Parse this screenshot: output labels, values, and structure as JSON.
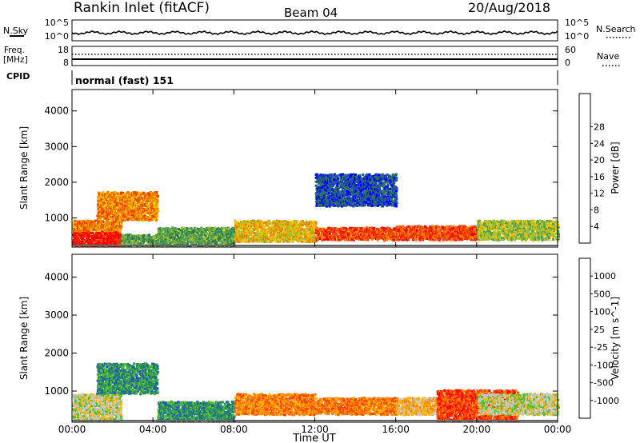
{
  "header": {
    "title": "Rankin Inlet (fitACF)",
    "beam": "Beam 04",
    "date": "20/Aug/2018"
  },
  "top_panels": {
    "nsky_label": "N.Sky",
    "nsearch_label": "N.Search",
    "noise_ticks_left": [
      "10^5",
      "10^0"
    ],
    "noise_ticks_right": [
      "10^5",
      "10^0"
    ],
    "freq_label_1": "Freq.",
    "freq_label_2": "[MHz]",
    "freq_ticks": [
      "18",
      "8"
    ],
    "nave_label": "Nave",
    "nave_ticks": [
      "60",
      "0"
    ],
    "cpid_label": "CPID",
    "cpid_value": "normal (fast) 151"
  },
  "colors": {
    "power": [
      "#0000ff",
      "#2050a8",
      "#2a7c50",
      "#50a050",
      "#a0c030",
      "#f0c000",
      "#f08000",
      "#f04000",
      "#ff0000"
    ],
    "velocity": [
      "#ff0000",
      "#ff4000",
      "#ff8000",
      "#ffb000",
      "#c8c8c8",
      "#50c030",
      "#2a8c60",
      "#2060a8",
      "#0000ff"
    ]
  },
  "chart_data": [
    {
      "type": "heatmap",
      "panel": "power",
      "ylabel": "Slant Range [km]",
      "xlabel": "Time UT",
      "x_ticks": [
        "00:00",
        "04:00",
        "08:00",
        "12:00",
        "16:00",
        "20:00",
        "00:00"
      ],
      "y_ticks": [
        "1000",
        "2000",
        "3000",
        "4000"
      ],
      "ylim": [
        180,
        4600
      ],
      "xlim_hours": [
        0,
        24
      ],
      "colorbar_label": "Power [dB]",
      "colorbar_ticks": [
        "4",
        "8",
        "12",
        "16",
        "20",
        "24",
        "28"
      ],
      "regions": [
        {
          "t": [
            0.0,
            2.4
          ],
          "r": [
            180,
            600
          ],
          "level": 8
        },
        {
          "t": [
            0.0,
            2.4
          ],
          "r": [
            600,
            900
          ],
          "level": 6
        },
        {
          "t": [
            2.4,
            4.2
          ],
          "r": [
            180,
            500
          ],
          "level": 3
        },
        {
          "t": [
            1.2,
            4.2
          ],
          "r": [
            900,
            1700
          ],
          "level": 6
        },
        {
          "t": [
            4.2,
            8.0
          ],
          "r": [
            180,
            700
          ],
          "level": 3
        },
        {
          "t": [
            8.0,
            12.0
          ],
          "r": [
            300,
            900
          ],
          "level": 5
        },
        {
          "t": [
            12.0,
            16.0
          ],
          "r": [
            350,
            700
          ],
          "level": 7
        },
        {
          "t": [
            16.0,
            20.0
          ],
          "r": [
            350,
            750
          ],
          "level": 7
        },
        {
          "t": [
            20.0,
            24.0
          ],
          "r": [
            350,
            900
          ],
          "level": 4
        },
        {
          "t": [
            12.0,
            16.0
          ],
          "r": [
            1300,
            2200
          ],
          "level": 1
        }
      ]
    },
    {
      "type": "heatmap",
      "panel": "velocity",
      "ylabel": "Slant Range [km]",
      "xlabel": "Time UT",
      "x_ticks": [
        "00:00",
        "04:00",
        "08:00",
        "12:00",
        "16:00",
        "20:00",
        "00:00"
      ],
      "y_ticks": [
        "1000",
        "2000",
        "3000",
        "4000"
      ],
      "ylim": [
        180,
        4600
      ],
      "xlim_hours": [
        0,
        24
      ],
      "colorbar_label": "Velocity [m s^-1]",
      "colorbar_ticks": [
        "-1000",
        "-500",
        "-100",
        "-25",
        "25",
        "100",
        "500",
        "1000"
      ],
      "regions": [
        {
          "t": [
            0.0,
            2.4
          ],
          "r": [
            180,
            900
          ],
          "level": 4
        },
        {
          "t": [
            1.2,
            4.2
          ],
          "r": [
            900,
            1700
          ],
          "level": 6
        },
        {
          "t": [
            4.2,
            8.0
          ],
          "r": [
            180,
            700
          ],
          "level": 6
        },
        {
          "t": [
            8.0,
            12.0
          ],
          "r": [
            350,
            900
          ],
          "level": 2
        },
        {
          "t": [
            12.0,
            16.0
          ],
          "r": [
            350,
            800
          ],
          "level": 2
        },
        {
          "t": [
            16.0,
            20.0
          ],
          "r": [
            350,
            800
          ],
          "level": 3
        },
        {
          "t": [
            18.0,
            22.0
          ],
          "r": [
            180,
            1000
          ],
          "level": 1
        },
        {
          "t": [
            20.0,
            24.0
          ],
          "r": [
            350,
            900
          ],
          "level": 4
        }
      ]
    }
  ]
}
